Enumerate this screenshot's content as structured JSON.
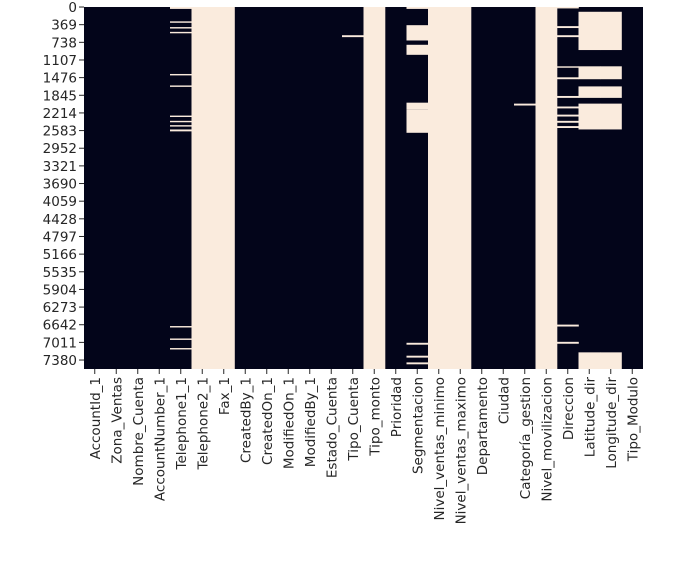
{
  "chart_data": {
    "type": "heatmap",
    "title": "",
    "xlabel": "",
    "ylabel": "",
    "colors": {
      "present": "#03051a",
      "missing": "#faebdd"
    },
    "row_count": 7568,
    "y_ticks": [
      0,
      369,
      738,
      1107,
      1476,
      1845,
      2214,
      2583,
      2952,
      3321,
      3690,
      4059,
      4428,
      4797,
      5166,
      5535,
      5904,
      6273,
      6642,
      7011,
      7380
    ],
    "columns": [
      {
        "name": "AccountId_1",
        "missing_rows": []
      },
      {
        "name": "Zona_Ventas",
        "missing_rows": []
      },
      {
        "name": "Nombre_Cuenta",
        "missing_rows": []
      },
      {
        "name": "AccountNumber_1",
        "missing_rows": []
      },
      {
        "name": "Telephone1_1",
        "missing_rows": [
          [
            0,
            40
          ],
          [
            300,
            330
          ],
          [
            420,
            450
          ],
          [
            520,
            550
          ],
          [
            1400,
            1430
          ],
          [
            1640,
            1670
          ],
          [
            2270,
            2300
          ],
          [
            2380,
            2410
          ],
          [
            2470,
            2500
          ],
          [
            2560,
            2600
          ],
          [
            6670,
            6700
          ],
          [
            6930,
            6960
          ],
          [
            7130,
            7160
          ]
        ]
      },
      {
        "name": "Telephone2_1",
        "missing_rows": [
          [
            0,
            7568
          ]
        ]
      },
      {
        "name": "Fax_1",
        "missing_rows": [
          [
            0,
            7568
          ]
        ]
      },
      {
        "name": "CreatedBy_1",
        "missing_rows": []
      },
      {
        "name": "CreatedOn_1",
        "missing_rows": []
      },
      {
        "name": "ModifiedOn_1",
        "missing_rows": []
      },
      {
        "name": "ModifiedBy_1",
        "missing_rows": []
      },
      {
        "name": "Estado_Cuenta",
        "missing_rows": []
      },
      {
        "name": "Tipo_Cuenta",
        "missing_rows": [
          [
            590,
            630
          ]
        ]
      },
      {
        "name": "Tipo_monto",
        "missing_rows": [
          [
            0,
            7568
          ]
        ]
      },
      {
        "name": "Prioridad",
        "missing_rows": []
      },
      {
        "name": "Segmentacion",
        "missing_rows": [
          [
            0,
            40
          ],
          [
            380,
            700
          ],
          [
            790,
            1000
          ],
          [
            2000,
            2150
          ],
          [
            2150,
            2630
          ],
          [
            7020,
            7060
          ],
          [
            7290,
            7330
          ],
          [
            7430,
            7470
          ]
        ]
      },
      {
        "name": "Nivel_ventas_minimo",
        "missing_rows": [
          [
            0,
            7568
          ]
        ]
      },
      {
        "name": "Nivel_ventas_maximo",
        "missing_rows": [
          [
            0,
            7568
          ]
        ]
      },
      {
        "name": "Departamento",
        "missing_rows": []
      },
      {
        "name": "Ciudad",
        "missing_rows": []
      },
      {
        "name": "Categoria_gestion",
        "missing_rows": [
          [
            2020,
            2060
          ]
        ]
      },
      {
        "name": "Nivel_movilizacion",
        "missing_rows": [
          [
            0,
            7568
          ]
        ]
      },
      {
        "name": "Direccion",
        "missing_rows": [
          [
            0,
            30
          ],
          [
            400,
            440
          ],
          [
            590,
            630
          ],
          [
            1240,
            1270
          ],
          [
            1470,
            1510
          ],
          [
            1860,
            1900
          ],
          [
            2080,
            2120
          ],
          [
            2250,
            2290
          ],
          [
            2380,
            2420
          ],
          [
            2490,
            2530
          ],
          [
            6640,
            6680
          ],
          [
            7000,
            7040
          ]
        ]
      },
      {
        "name": "Latitude_dir",
        "missing_rows": [
          [
            100,
            900
          ],
          [
            1240,
            1510
          ],
          [
            1660,
            1900
          ],
          [
            2020,
            2560
          ],
          [
            7220,
            7568
          ]
        ]
      },
      {
        "name": "Longitude_dir",
        "missing_rows": [
          [
            100,
            900
          ],
          [
            1240,
            1510
          ],
          [
            1660,
            1900
          ],
          [
            2020,
            2560
          ],
          [
            7220,
            7568
          ]
        ]
      },
      {
        "name": "Tipo_Modulo",
        "missing_rows": []
      }
    ],
    "x_tick_labels": [
      "AccountId_1",
      "Zona_Ventas",
      "Nombre_Cuenta",
      "AccountNumber_1",
      "Telephone1_1",
      "Telephone2_1",
      "Fax_1",
      "CreatedBy_1",
      "CreatedOn_1",
      "ModifiedOn_1",
      "ModifiedBy_1",
      "Estado_Cuenta",
      "Tipo_Cuenta",
      "Tipo_monto",
      "Prioridad",
      "Segmentacion",
      "Nivel_ventas_minimo",
      "Nivel_ventas_maximo",
      "Departamento",
      "Ciudad",
      "Categoría_gestion",
      "Nivel_movilizacion",
      "Direccion",
      "Latitude_dir",
      "Longitude_dir",
      "Tipo_Modulo"
    ]
  }
}
